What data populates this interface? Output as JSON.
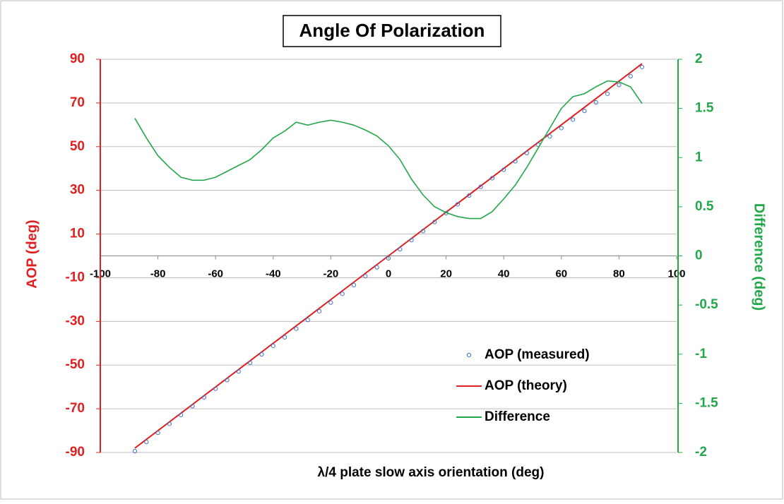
{
  "chart_data": {
    "type": "line",
    "title": "Angle Of Polarization",
    "x_label": "λ/4 plate slow axis orientation (deg)",
    "y_label": "AOP  (deg)",
    "y2_label": "Difference (deg)",
    "x": [
      -88,
      -84,
      -80,
      -76,
      -72,
      -68,
      -64,
      -60,
      -56,
      -52,
      -48,
      -44,
      -40,
      -36,
      -32,
      -28,
      -24,
      -20,
      -16,
      -12,
      -8,
      -4,
      0,
      4,
      8,
      12,
      16,
      20,
      24,
      28,
      32,
      36,
      40,
      44,
      48,
      52,
      56,
      60,
      64,
      68,
      72,
      76,
      80,
      84,
      88
    ],
    "series": [
      {
        "name": "AOP (measured)",
        "color": "#4472c4",
        "marker": "circle",
        "values": [
          -89.4,
          -85.2,
          -81.02,
          -76.9,
          -72.8,
          -68.77,
          -64.77,
          -60.8,
          -56.86,
          -52.92,
          -48.98,
          -45.08,
          -41.2,
          -37.27,
          -33.36,
          -29.33,
          -25.36,
          -21.38,
          -17.36,
          -13.33,
          -9.28,
          -5.22,
          -1.12,
          3.02,
          7.22,
          11.38,
          15.5,
          19.56,
          23.6,
          27.62,
          31.62,
          35.55,
          39.42,
          43.28,
          47.1,
          50.9,
          54.7,
          58.5,
          62.38,
          66.35,
          70.28,
          74.22,
          78.23,
          82.28,
          86.45
        ]
      },
      {
        "name": "AOP (theory)",
        "color": "#e02020",
        "marker": "line",
        "values": [
          -88,
          -84,
          -80,
          -76,
          -72,
          -68,
          -64,
          -60,
          -56,
          -52,
          -48,
          -44,
          -40,
          -36,
          -32,
          -28,
          -24,
          -20,
          -16,
          -12,
          -8,
          -4,
          0,
          4,
          8,
          12,
          16,
          20,
          24,
          28,
          32,
          36,
          40,
          44,
          48,
          52,
          56,
          60,
          64,
          68,
          72,
          76,
          80,
          84,
          88
        ]
      },
      {
        "name": "Difference",
        "color": "#22a84a",
        "marker": "line",
        "axis": "y2",
        "values": [
          1.4,
          1.2,
          1.02,
          0.9,
          0.8,
          0.77,
          0.77,
          0.8,
          0.86,
          0.92,
          0.98,
          1.08,
          1.2,
          1.27,
          1.36,
          1.33,
          1.36,
          1.38,
          1.36,
          1.33,
          1.28,
          1.22,
          1.12,
          0.98,
          0.78,
          0.62,
          0.5,
          0.44,
          0.4,
          0.38,
          0.38,
          0.45,
          0.58,
          0.72,
          0.9,
          1.1,
          1.3,
          1.5,
          1.62,
          1.65,
          1.72,
          1.78,
          1.77,
          1.72,
          1.55
        ]
      }
    ],
    "xlim": [
      -100,
      100
    ],
    "xticks": [
      -100,
      -80,
      -60,
      -40,
      -20,
      0,
      20,
      40,
      60,
      80,
      100
    ],
    "ylim": [
      -90,
      90
    ],
    "yticks": [
      -90,
      -70,
      -50,
      -30,
      -10,
      10,
      30,
      50,
      70,
      90
    ],
    "y2lim": [
      -2,
      2
    ],
    "y2ticks": [
      -2,
      -1.5,
      -1,
      -0.5,
      0,
      0.5,
      1,
      1.5,
      2
    ],
    "y_color": "#e02020",
    "y2_color": "#22a84a",
    "grid": true
  }
}
